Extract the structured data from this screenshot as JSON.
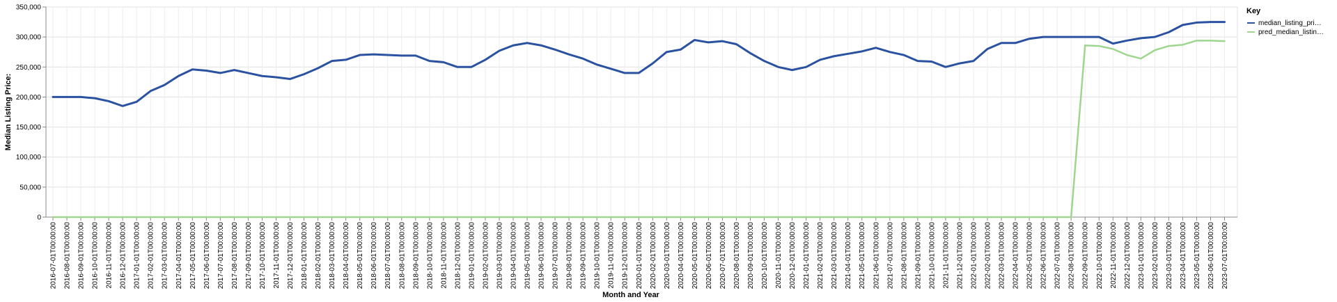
{
  "chart_data": {
    "type": "line",
    "title": "",
    "xlabel": "Month and Year",
    "ylabel": "Median Listing Price:",
    "ylim": [
      0,
      350000
    ],
    "yticks": [
      "0",
      "50,000",
      "100,000",
      "150,000",
      "200,000",
      "250,000",
      "300,000",
      "350,000"
    ],
    "grid": true,
    "legend": {
      "title": "Key",
      "placement": "right",
      "entries": [
        {
          "label": "median_listing_pri…",
          "color": "#2a52a0"
        },
        {
          "label": "pred_median_listin…",
          "color": "#9fd68f"
        }
      ]
    },
    "x": [
      "2016-07-01T00:00:00",
      "2016-08-01T00:00:00",
      "2016-09-01T00:00:00",
      "2016-10-01T00:00:00",
      "2016-11-01T00:00:00",
      "2016-12-01T00:00:00",
      "2017-01-01T00:00:00",
      "2017-02-01T00:00:00",
      "2017-03-01T00:00:00",
      "2017-04-01T00:00:00",
      "2017-05-01T00:00:00",
      "2017-06-01T00:00:00",
      "2017-07-01T00:00:00",
      "2017-08-01T00:00:00",
      "2017-09-01T00:00:00",
      "2017-10-01T00:00:00",
      "2017-11-01T00:00:00",
      "2017-12-01T00:00:00",
      "2018-01-01T00:00:00",
      "2018-02-01T00:00:00",
      "2018-03-01T00:00:00",
      "2018-04-01T00:00:00",
      "2018-05-01T00:00:00",
      "2018-06-01T00:00:00",
      "2018-07-01T00:00:00",
      "2018-08-01T00:00:00",
      "2018-09-01T00:00:00",
      "2018-10-01T00:00:00",
      "2018-11-01T00:00:00",
      "2018-12-01T00:00:00",
      "2019-01-01T00:00:00",
      "2019-02-01T00:00:00",
      "2019-03-01T00:00:00",
      "2019-04-01T00:00:00",
      "2019-05-01T00:00:00",
      "2019-06-01T00:00:00",
      "2019-07-01T00:00:00",
      "2019-08-01T00:00:00",
      "2019-09-01T00:00:00",
      "2019-10-01T00:00:00",
      "2019-11-01T00:00:00",
      "2019-12-01T00:00:00",
      "2020-01-01T00:00:00",
      "2020-02-01T00:00:00",
      "2020-03-01T00:00:00",
      "2020-04-01T00:00:00",
      "2020-05-01T00:00:00",
      "2020-06-01T00:00:00",
      "2020-07-01T00:00:00",
      "2020-08-01T00:00:00",
      "2020-09-01T00:00:00",
      "2020-10-01T00:00:00",
      "2020-11-01T00:00:00",
      "2020-12-01T00:00:00",
      "2021-01-01T00:00:00",
      "2021-02-01T00:00:00",
      "2021-03-01T00:00:00",
      "2021-04-01T00:00:00",
      "2021-05-01T00:00:00",
      "2021-06-01T00:00:00",
      "2021-07-01T00:00:00",
      "2021-08-01T00:00:00",
      "2021-09-01T00:00:00",
      "2021-10-01T00:00:00",
      "2021-11-01T00:00:00",
      "2021-12-01T00:00:00",
      "2022-01-01T00:00:00",
      "2022-02-01T00:00:00",
      "2022-03-01T00:00:00",
      "2022-04-01T00:00:00",
      "2022-05-01T00:00:00",
      "2022-06-01T00:00:00",
      "2022-07-01T00:00:00",
      "2022-08-01T00:00:00",
      "2022-09-01T00:00:00",
      "2022-10-01T00:00:00",
      "2022-11-01T00:00:00",
      "2022-12-01T00:00:00",
      "2023-01-01T00:00:00",
      "2023-02-01T00:00:00",
      "2023-03-01T00:00:00",
      "2023-04-01T00:00:00",
      "2023-05-01T00:00:00",
      "2023-06-01T00:00:00",
      "2023-07-01T00:00:00"
    ],
    "series": [
      {
        "name": "median_listing_pri…",
        "color": "#2a52a0",
        "values": [
          200000,
          200000,
          200000,
          198000,
          193000,
          185000,
          192000,
          210000,
          220000,
          235000,
          246000,
          244000,
          240000,
          245000,
          240000,
          235000,
          233000,
          230000,
          238000,
          248000,
          260000,
          262000,
          270000,
          271000,
          270000,
          269000,
          269000,
          260000,
          258000,
          250000,
          250000,
          262000,
          277000,
          286000,
          290000,
          286000,
          279000,
          271000,
          264000,
          254000,
          247000,
          240000,
          240000,
          256000,
          275000,
          279000,
          295000,
          291000,
          293000,
          288000,
          273000,
          260000,
          250000,
          245000,
          250000,
          262000,
          268000,
          272000,
          276000,
          282000,
          275000,
          270000,
          260000,
          259000,
          250000,
          256000,
          260000,
          280000,
          290000,
          290000,
          297000,
          300000,
          300000,
          300000,
          300000,
          300000,
          289000,
          294000,
          298000,
          300000,
          308000,
          320000,
          324000,
          325000,
          325000
        ]
      },
      {
        "name": "pred_median_listin…",
        "color": "#9fd68f",
        "values": [
          0,
          0,
          0,
          0,
          0,
          0,
          0,
          0,
          0,
          0,
          0,
          0,
          0,
          0,
          0,
          0,
          0,
          0,
          0,
          0,
          0,
          0,
          0,
          0,
          0,
          0,
          0,
          0,
          0,
          0,
          0,
          0,
          0,
          0,
          0,
          0,
          0,
          0,
          0,
          0,
          0,
          0,
          0,
          0,
          0,
          0,
          0,
          0,
          0,
          0,
          0,
          0,
          0,
          0,
          0,
          0,
          0,
          0,
          0,
          0,
          0,
          0,
          0,
          0,
          0,
          0,
          0,
          0,
          0,
          0,
          0,
          0,
          0,
          0,
          286000,
          285000,
          280000,
          270000,
          264000,
          278000,
          285000,
          287000,
          294000,
          294000,
          293000
        ]
      }
    ]
  }
}
